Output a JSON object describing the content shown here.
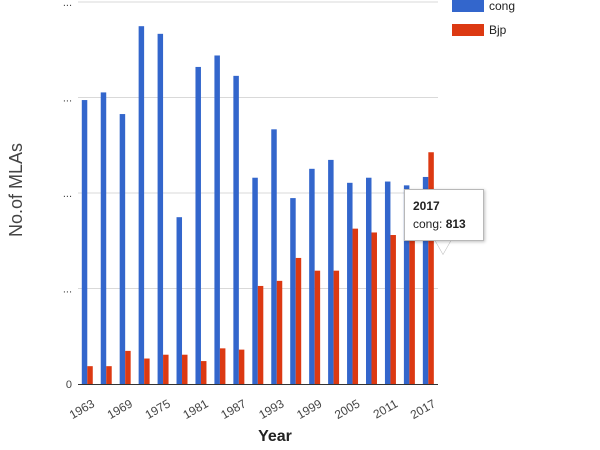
{
  "chart_data": {
    "type": "bar",
    "title": "",
    "xlabel": "Year",
    "ylabel": "No.of MLAs",
    "ylim": [
      0,
      1500
    ],
    "yticks": [
      "0",
      "...",
      "...",
      "...",
      "..."
    ],
    "xticks": [
      "1963",
      "1969",
      "1975",
      "1981",
      "1987",
      "1993",
      "1999",
      "2005",
      "2011",
      "2017"
    ],
    "categories": [
      "1963",
      "1966",
      "1969",
      "1972",
      "1975",
      "1978",
      "1981",
      "1984",
      "1987",
      "1990",
      "1993",
      "1996",
      "1999",
      "2002",
      "2005",
      "2008",
      "2011",
      "2014",
      "2017"
    ],
    "series": [
      {
        "name": "cong",
        "color": "#3366cc",
        "values": [
          1115,
          1145,
          1060,
          1405,
          1375,
          655,
          1245,
          1290,
          1210,
          810,
          1000,
          730,
          845,
          880,
          790,
          810,
          795,
          780,
          813
        ]
      },
      {
        "name": "Bjp",
        "color": "#dc3912",
        "values": [
          70,
          70,
          130,
          100,
          115,
          115,
          90,
          140,
          135,
          385,
          405,
          495,
          445,
          445,
          610,
          595,
          585,
          610,
          910
        ]
      }
    ],
    "legend": "top-right",
    "grid": true
  },
  "tooltip": {
    "title": "2017",
    "series_label": "cong",
    "value": "813"
  }
}
